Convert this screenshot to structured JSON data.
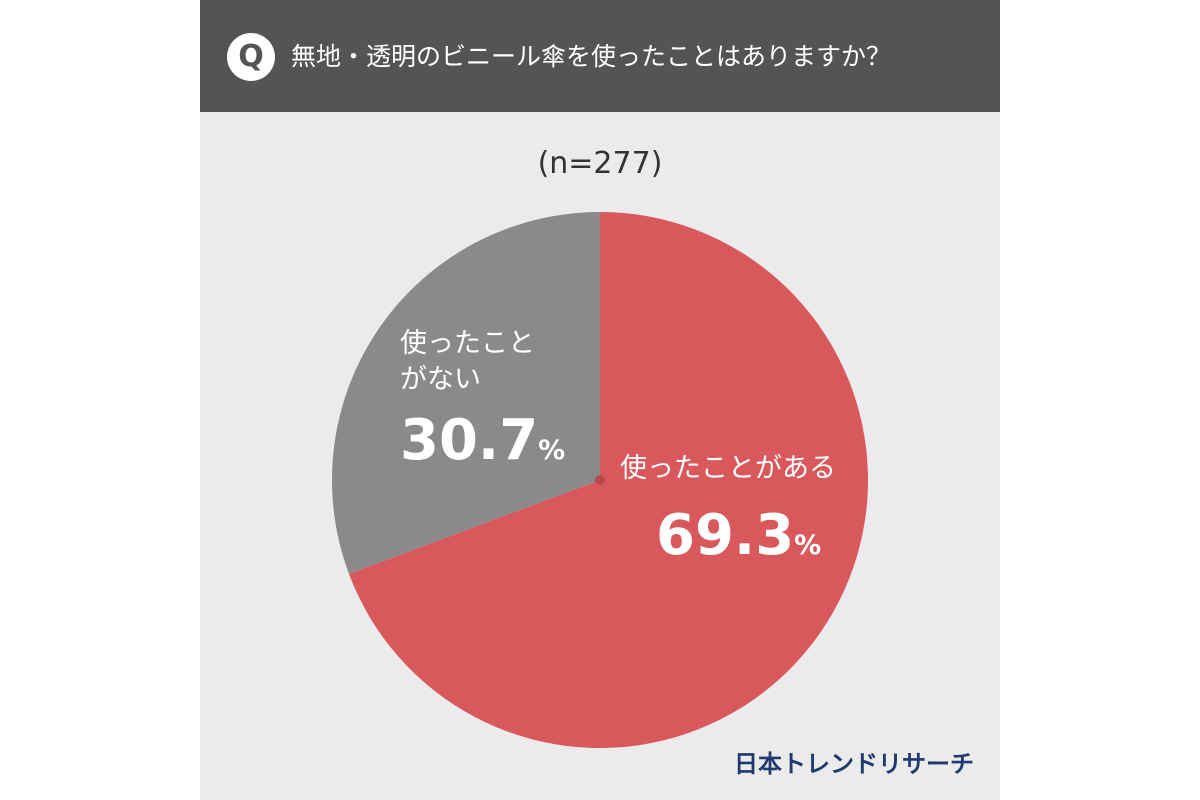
{
  "header": {
    "badge": "Q",
    "question": "無地・透明のビニール傘を使ったことはありますか？"
  },
  "chart_data": {
    "type": "pie",
    "title": "無地・透明のビニール傘を使ったことはありますか？",
    "subtitle": "(n=277)",
    "categories": [
      "使ったことがある",
      "使ったことがない"
    ],
    "values": [
      69.3,
      30.7
    ],
    "unit": "%",
    "start": "12 o'clock",
    "direction": "clockwise",
    "colors": [
      "#d9585b",
      "#8a8a8a"
    ]
  },
  "labels": {
    "used": {
      "name": "使ったことがある",
      "value": "69.3",
      "unit": "%"
    },
    "not_used": {
      "name": "使ったことがない",
      "value": "30.7",
      "unit": "%"
    }
  },
  "logo": "日本トレンドリサーチ",
  "colors": {
    "header_bg": "#545454",
    "card_bg": "#ebebeb",
    "logo": "#1f3a6e"
  }
}
